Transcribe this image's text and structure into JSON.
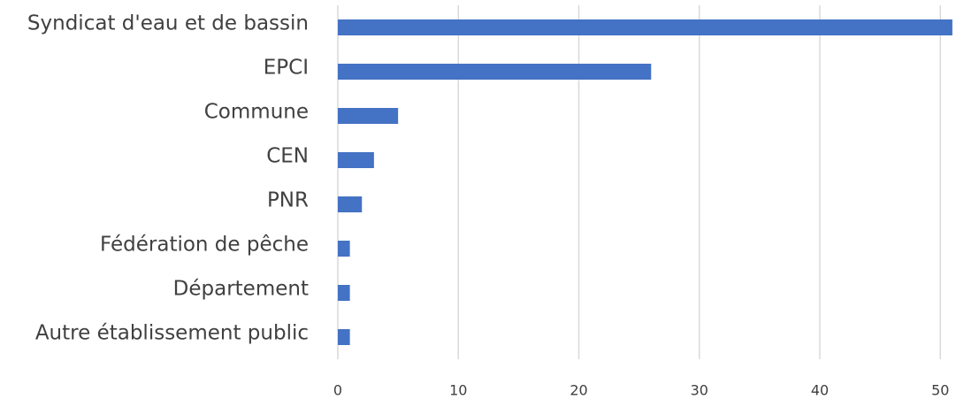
{
  "chart_data": {
    "type": "hbar",
    "categories": [
      "Syndicat d'eau et de bassin",
      "EPCI",
      "Commune",
      "CEN",
      "PNR",
      "Fédération de pêche",
      "Département",
      "Autre établissement public"
    ],
    "values": [
      51,
      26,
      5,
      3,
      2,
      1,
      1,
      1
    ],
    "color": "#4472c4",
    "xlim": [
      0,
      51.3
    ],
    "xticks": [
      0,
      10,
      20,
      30,
      40,
      50
    ],
    "grid": true
  }
}
